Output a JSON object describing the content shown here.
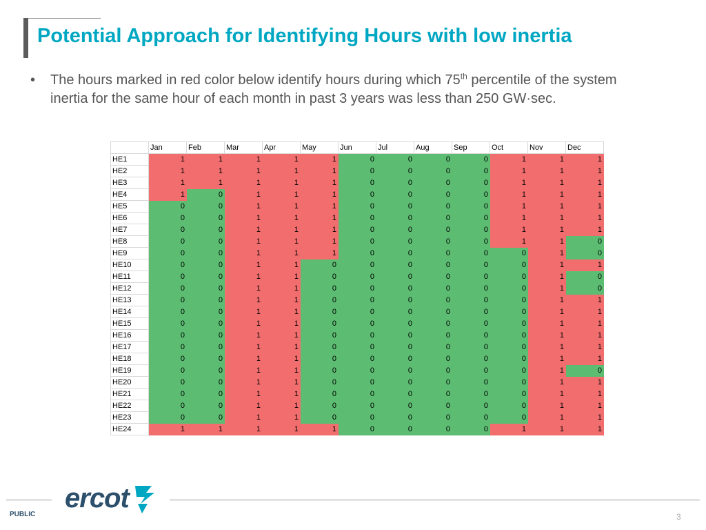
{
  "title": "Potential Approach for Identifying Hours with low inertia",
  "bullet": {
    "dot": "•",
    "text_part1": "The hours marked in red color below identify hours during which 75",
    "sup": "th",
    "text_part2": " percentile of the system inertia for the same hour of each month in past 3 years was less than 250 GW·sec."
  },
  "table": {
    "months": [
      "Jan",
      "Feb",
      "Mar",
      "Apr",
      "May",
      "Jun",
      "Jul",
      "Aug",
      "Sep",
      "Oct",
      "Nov",
      "Dec"
    ],
    "rows": [
      {
        "label": "HE1",
        "values": [
          1,
          1,
          1,
          1,
          1,
          0,
          0,
          0,
          0,
          1,
          1,
          1
        ]
      },
      {
        "label": "HE2",
        "values": [
          1,
          1,
          1,
          1,
          1,
          0,
          0,
          0,
          0,
          1,
          1,
          1
        ]
      },
      {
        "label": "HE3",
        "values": [
          1,
          1,
          1,
          1,
          1,
          0,
          0,
          0,
          0,
          1,
          1,
          1
        ]
      },
      {
        "label": "HE4",
        "values": [
          1,
          0,
          1,
          1,
          1,
          0,
          0,
          0,
          0,
          1,
          1,
          1
        ]
      },
      {
        "label": "HE5",
        "values": [
          0,
          0,
          1,
          1,
          1,
          0,
          0,
          0,
          0,
          1,
          1,
          1
        ]
      },
      {
        "label": "HE6",
        "values": [
          0,
          0,
          1,
          1,
          1,
          0,
          0,
          0,
          0,
          1,
          1,
          1
        ]
      },
      {
        "label": "HE7",
        "values": [
          0,
          0,
          1,
          1,
          1,
          0,
          0,
          0,
          0,
          1,
          1,
          1
        ]
      },
      {
        "label": "HE8",
        "values": [
          0,
          0,
          1,
          1,
          1,
          0,
          0,
          0,
          0,
          1,
          1,
          0
        ]
      },
      {
        "label": "HE9",
        "values": [
          0,
          0,
          1,
          1,
          1,
          0,
          0,
          0,
          0,
          0,
          1,
          0
        ]
      },
      {
        "label": "HE10",
        "values": [
          0,
          0,
          1,
          1,
          0,
          0,
          0,
          0,
          0,
          0,
          1,
          1
        ]
      },
      {
        "label": "HE11",
        "values": [
          0,
          0,
          1,
          1,
          0,
          0,
          0,
          0,
          0,
          0,
          1,
          0
        ]
      },
      {
        "label": "HE12",
        "values": [
          0,
          0,
          1,
          1,
          0,
          0,
          0,
          0,
          0,
          0,
          1,
          0
        ]
      },
      {
        "label": "HE13",
        "values": [
          0,
          0,
          1,
          1,
          0,
          0,
          0,
          0,
          0,
          0,
          1,
          1
        ]
      },
      {
        "label": "HE14",
        "values": [
          0,
          0,
          1,
          1,
          0,
          0,
          0,
          0,
          0,
          0,
          1,
          1
        ]
      },
      {
        "label": "HE15",
        "values": [
          0,
          0,
          1,
          1,
          0,
          0,
          0,
          0,
          0,
          0,
          1,
          1
        ]
      },
      {
        "label": "HE16",
        "values": [
          0,
          0,
          1,
          1,
          0,
          0,
          0,
          0,
          0,
          0,
          1,
          1
        ]
      },
      {
        "label": "HE17",
        "values": [
          0,
          0,
          1,
          1,
          0,
          0,
          0,
          0,
          0,
          0,
          1,
          1
        ]
      },
      {
        "label": "HE18",
        "values": [
          0,
          0,
          1,
          1,
          0,
          0,
          0,
          0,
          0,
          0,
          1,
          1
        ]
      },
      {
        "label": "HE19",
        "values": [
          0,
          0,
          1,
          1,
          0,
          0,
          0,
          0,
          0,
          0,
          1,
          0
        ]
      },
      {
        "label": "HE20",
        "values": [
          0,
          0,
          1,
          1,
          0,
          0,
          0,
          0,
          0,
          0,
          1,
          1
        ]
      },
      {
        "label": "HE21",
        "values": [
          0,
          0,
          1,
          1,
          0,
          0,
          0,
          0,
          0,
          0,
          1,
          1
        ]
      },
      {
        "label": "HE22",
        "values": [
          0,
          0,
          1,
          1,
          0,
          0,
          0,
          0,
          0,
          0,
          1,
          1
        ]
      },
      {
        "label": "HE23",
        "values": [
          0,
          0,
          1,
          1,
          0,
          0,
          0,
          0,
          0,
          0,
          1,
          1
        ]
      },
      {
        "label": "HE24",
        "values": [
          1,
          1,
          1,
          1,
          1,
          0,
          0,
          0,
          0,
          1,
          1,
          1
        ]
      }
    ],
    "colors": {
      "low_inertia": "#f26d6d",
      "ok": "#5cbd72"
    }
  },
  "footer": {
    "logo_text": "ercot",
    "logo_mark": "ercot-star-icon",
    "public_label": "PUBLIC",
    "page_number": "3"
  }
}
